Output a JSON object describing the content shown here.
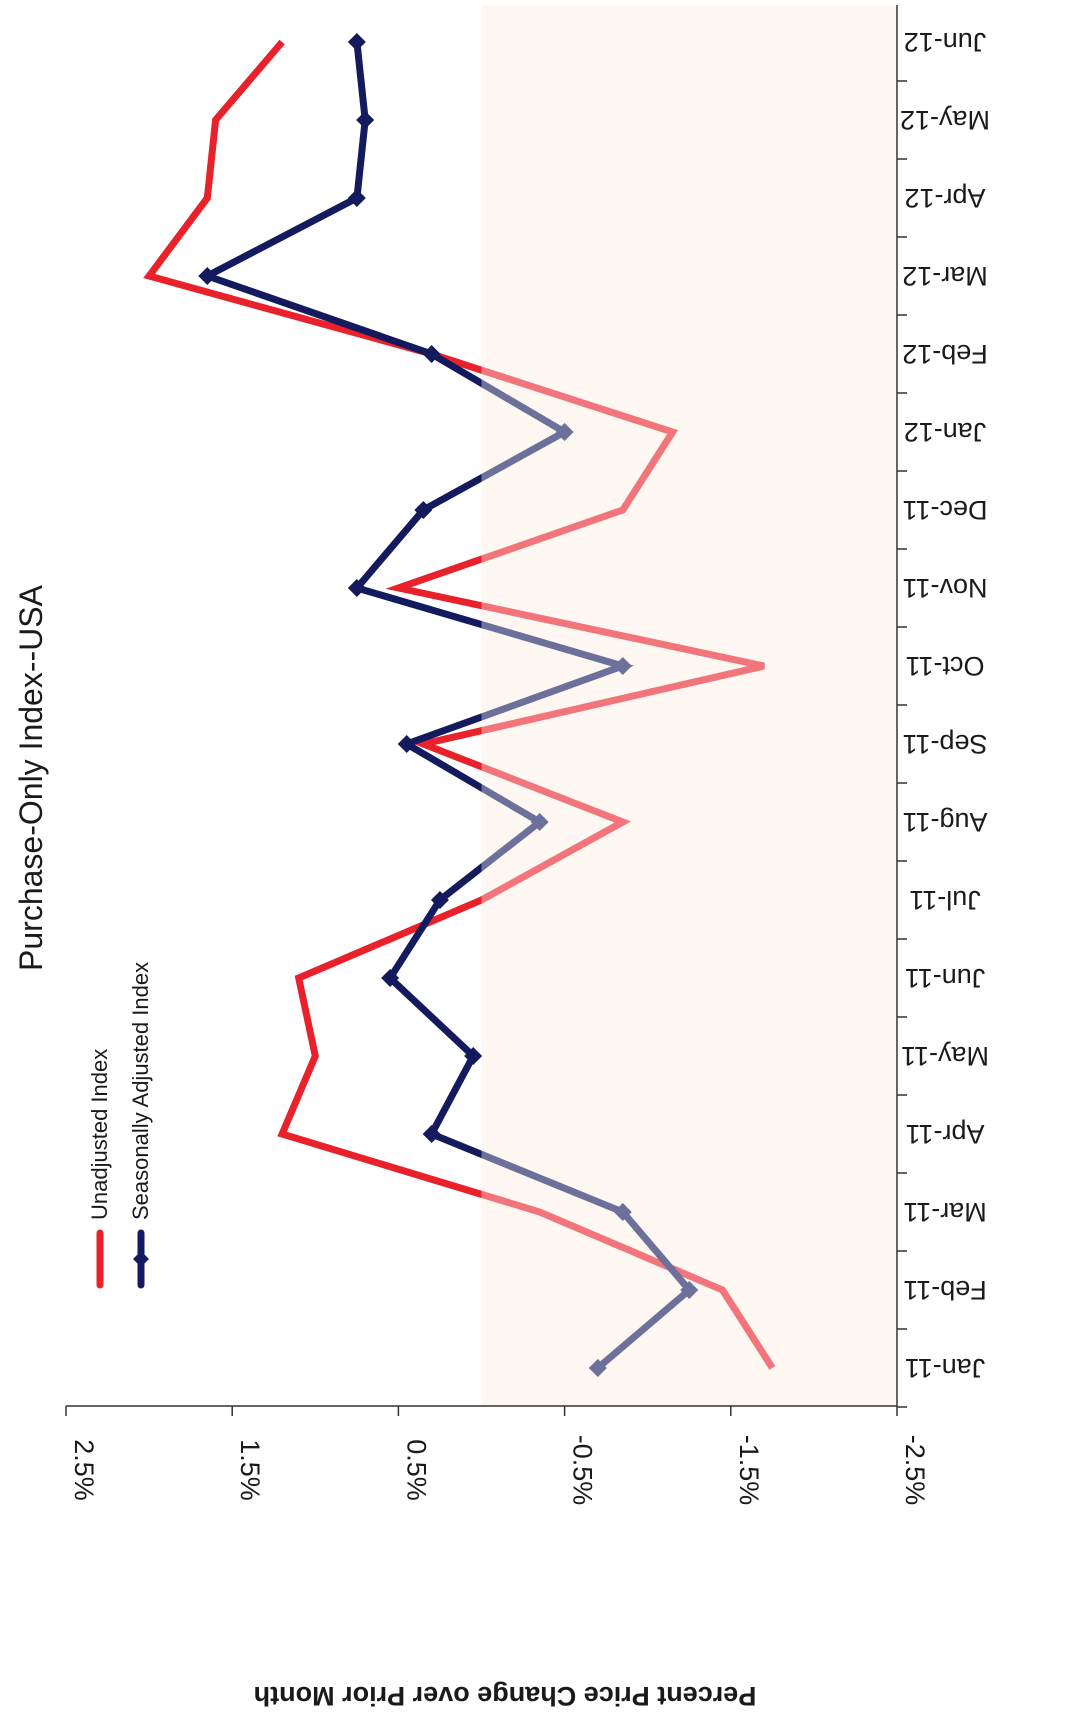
{
  "chart_data": {
    "type": "line",
    "title": "Purchase-Only Index--USA",
    "ylabel": "Percent Price Change over Prior Month",
    "xlabel": "",
    "ylim": [
      -2.5,
      2.5
    ],
    "y_ticks": [
      "2.5%",
      "1.5%",
      "0.5%",
      "-0.5%",
      "-1.5%",
      "-2.5%"
    ],
    "y_tick_values": [
      2.5,
      1.5,
      0.5,
      -0.5,
      -1.5,
      -2.5
    ],
    "negative_region_fill": "#fdf2ea",
    "legend_position": "top-left",
    "categories": [
      "Jan-11",
      "Feb-11",
      "Mar-11",
      "Apr-11",
      "May-11",
      "Jun-11",
      "Jul-11",
      "Aug-11",
      "Sep-11",
      "Oct-11",
      "Nov-11",
      "Dec-11",
      "Jan-12",
      "Feb-12",
      "Mar-12",
      "Apr-12",
      "May-12",
      "Jun-12"
    ],
    "series": [
      {
        "name": "Unadjusted Index",
        "color": "#e8212b",
        "marker": "none",
        "values": [
          -1.75,
          -1.45,
          -0.35,
          1.2,
          1.0,
          1.1,
          0.0,
          -0.85,
          0.35,
          -1.7,
          0.5,
          -0.85,
          -1.15,
          0.3,
          2.0,
          1.65,
          1.6,
          1.2
        ]
      },
      {
        "name": "Seasonally Adjusted Index",
        "color": "#131a5e",
        "marker": "diamond",
        "values": [
          -0.7,
          -1.25,
          -0.85,
          0.3,
          0.05,
          0.55,
          0.25,
          -0.35,
          0.45,
          -0.85,
          0.75,
          0.35,
          -0.5,
          0.3,
          1.65,
          0.75,
          0.7,
          0.75
        ]
      }
    ]
  }
}
